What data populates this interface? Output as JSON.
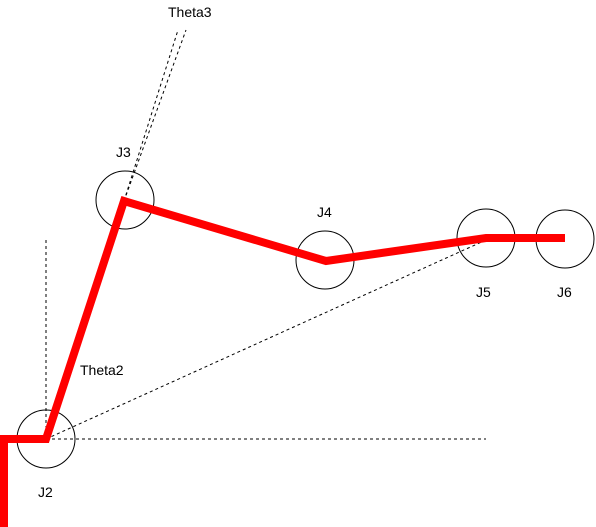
{
  "joints": {
    "j2": "J2",
    "j3": "J3",
    "j4": "J4",
    "j5": "J5",
    "j6": "J6"
  },
  "angles": {
    "theta2": "Theta2",
    "theta3": "Theta3"
  },
  "colors": {
    "arm": "#ff0000",
    "lines": "#000000"
  }
}
